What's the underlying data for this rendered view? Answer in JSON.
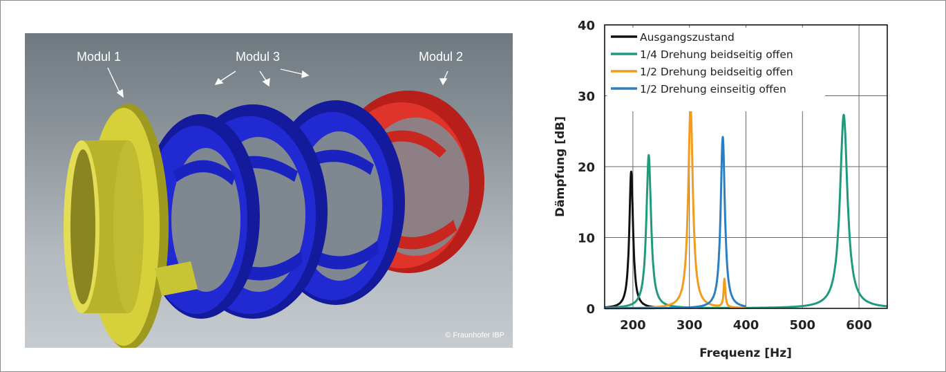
{
  "figure": {
    "labels": {
      "modul_1": "Modul 1",
      "modul_3": "Modul 3",
      "modul_2": "Modul 2",
      "copyright": "© Fraunhofer IBP"
    },
    "colors": {
      "modul_1": "#d6d13a",
      "modul_3": "#1a22c8",
      "modul_2": "#d42a22"
    }
  },
  "chart_data": {
    "type": "line",
    "xlabel": "Frequenz [Hz]",
    "ylabel": "Dämpfung [dB]",
    "xlim": [
      150,
      650
    ],
    "ylim": [
      0,
      40
    ],
    "xticks": [
      200,
      300,
      400,
      500,
      600
    ],
    "yticks": [
      0,
      10,
      20,
      30,
      40
    ],
    "grid": true,
    "legend_position": "top-left",
    "series": [
      {
        "name": "Ausgangszustand",
        "color": "#111111",
        "peak": 197,
        "height": 19.3,
        "width": 4,
        "range": [
          150,
          250
        ]
      },
      {
        "name": "1/4 Drehung beidseitig offen",
        "color": "#1f9a7e",
        "peaks": [
          [
            228,
            21.6,
            5
          ],
          [
            573,
            27.3,
            8
          ]
        ],
        "range": [
          150,
          650
        ]
      },
      {
        "name": "1/2 Drehung beidseitig offen",
        "color": "#f39b1c",
        "peaks": [
          [
            302,
            28.4,
            5
          ],
          [
            362,
            4.0,
            1.8
          ]
        ],
        "range": [
          150,
          400
        ]
      },
      {
        "name": "1/2 Drehung einseitig offen",
        "color": "#2a7fc4",
        "peak": 359,
        "height": 24.2,
        "width": 4.5,
        "range": [
          150,
          400
        ]
      }
    ]
  }
}
